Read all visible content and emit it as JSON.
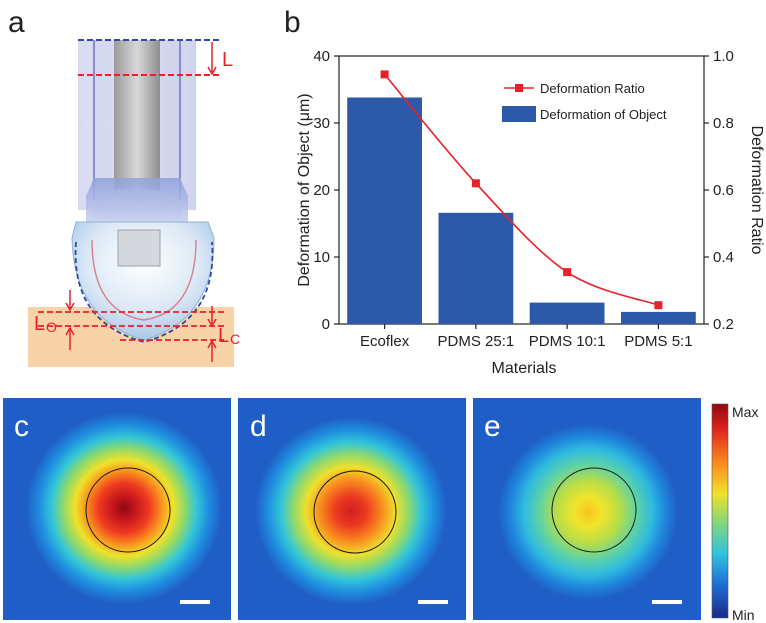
{
  "panels": {
    "a": "a",
    "b": "b",
    "c": "c",
    "d": "d",
    "e": "e"
  },
  "schematic": {
    "label_L": "L",
    "label_Lo": "L",
    "label_Lo_sub": "O",
    "label_Lc": "L",
    "label_Lc_sub": "C"
  },
  "colorbar": {
    "max_label": "Max",
    "min_label": "Min"
  },
  "chart_data": {
    "type": "bar",
    "categories": [
      "Ecoflex",
      "PDMS 25:1",
      "PDMS 10:1",
      "PDMS 5:1"
    ],
    "xlabel": "Materials",
    "ylabel": "Deformation of Object (μm)",
    "ylabel_right": "Deformation Ratio",
    "ylim": [
      0,
      40
    ],
    "ylim_right": [
      0.2,
      1.0
    ],
    "yticks": [
      "0",
      "10",
      "20",
      "30",
      "40"
    ],
    "yticks_right": [
      "0.2",
      "0.4",
      "0.6",
      "0.8",
      "1.0"
    ],
    "legend_position": "top-right",
    "series": [
      {
        "name": "Deformation of Object",
        "type": "bar",
        "axis": "left",
        "color": "#2c5aa8",
        "values": [
          33.8,
          16.6,
          3.2,
          1.8
        ]
      },
      {
        "name": "Deformation Ratio",
        "type": "line",
        "axis": "right",
        "color": "#e8202a",
        "values": [
          0.945,
          0.62,
          0.355,
          0.256
        ]
      }
    ]
  },
  "heatmaps": [
    {
      "panel": "c",
      "peak_color": "#9a0a14"
    },
    {
      "panel": "d",
      "peak_color": "#cf1f1f"
    },
    {
      "panel": "e",
      "peak_color": "#f4e81e"
    }
  ]
}
